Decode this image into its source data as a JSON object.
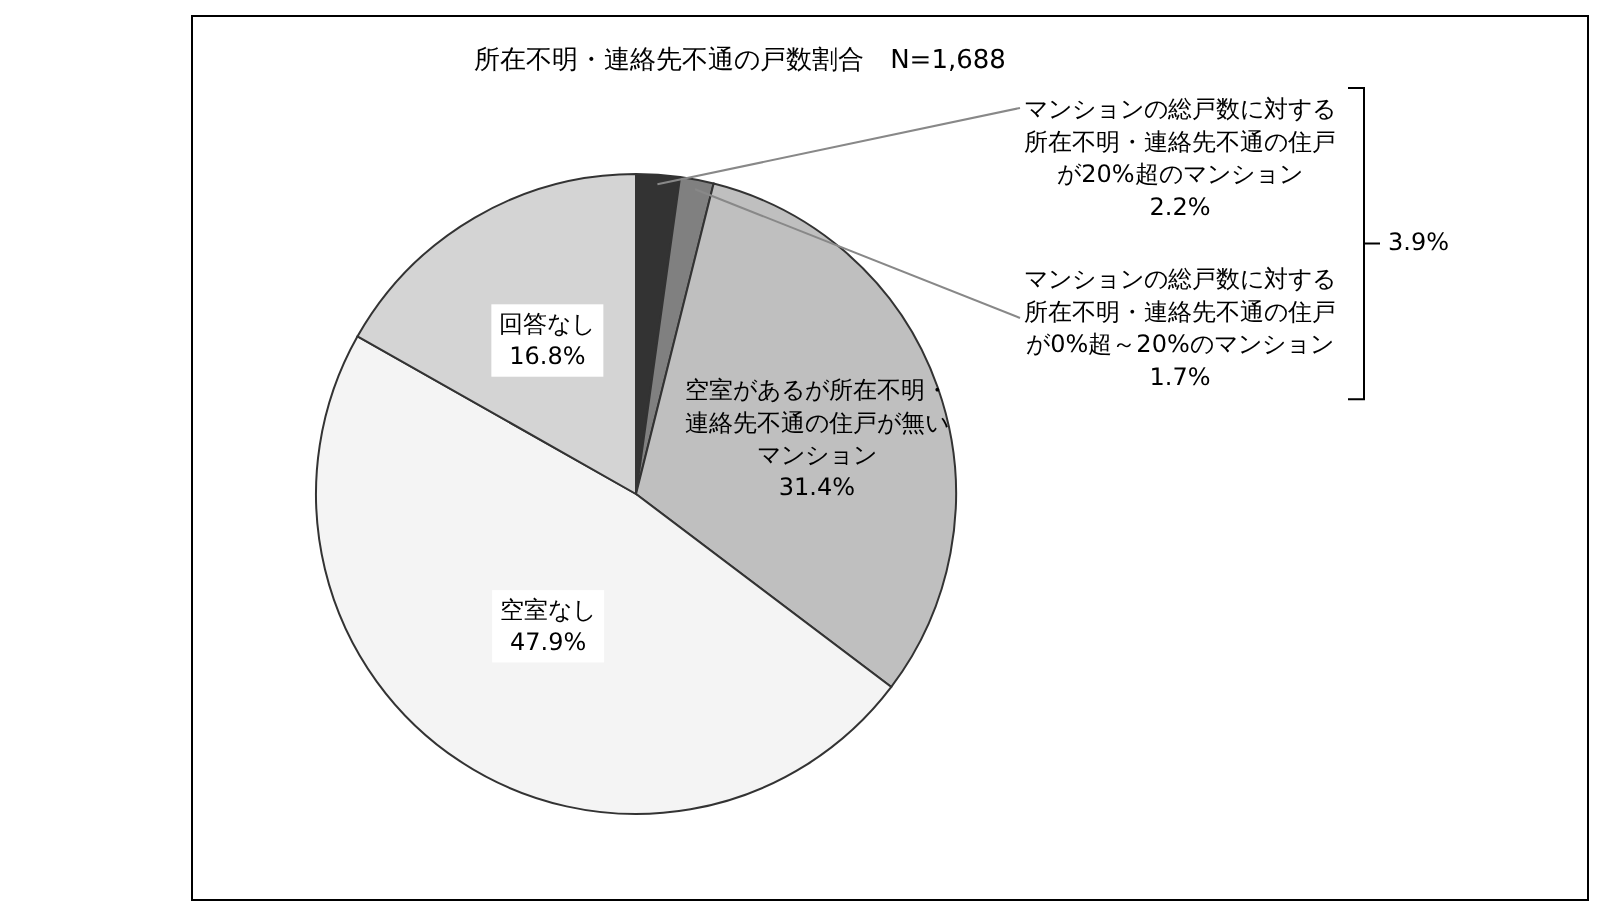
{
  "chart_data": {
    "type": "pie",
    "title": "所在不明・連絡先不通の戸数割合　N=1,688",
    "categories": [
      "マンションの総戸数に対する所在不明・連絡先不通の住戸が20%超のマンション",
      "マンションの総戸数に対する所在不明・連絡先不通の住戸が0%超～20%のマンション",
      "空室があるが所在不明・連絡先不通の住戸が無いマンション",
      "空室なし",
      "回答なし"
    ],
    "values": [
      2.2,
      1.7,
      31.4,
      47.9,
      16.8
    ],
    "value_labels": [
      "2.2%",
      "1.7%",
      "31.4%",
      "47.9%",
      "16.8%"
    ],
    "colors": [
      "#333333",
      "#808080",
      "#bfbfbf",
      "#f4f4f4",
      "#d4d4d4"
    ],
    "annotations": [
      "3.9%"
    ]
  }
}
